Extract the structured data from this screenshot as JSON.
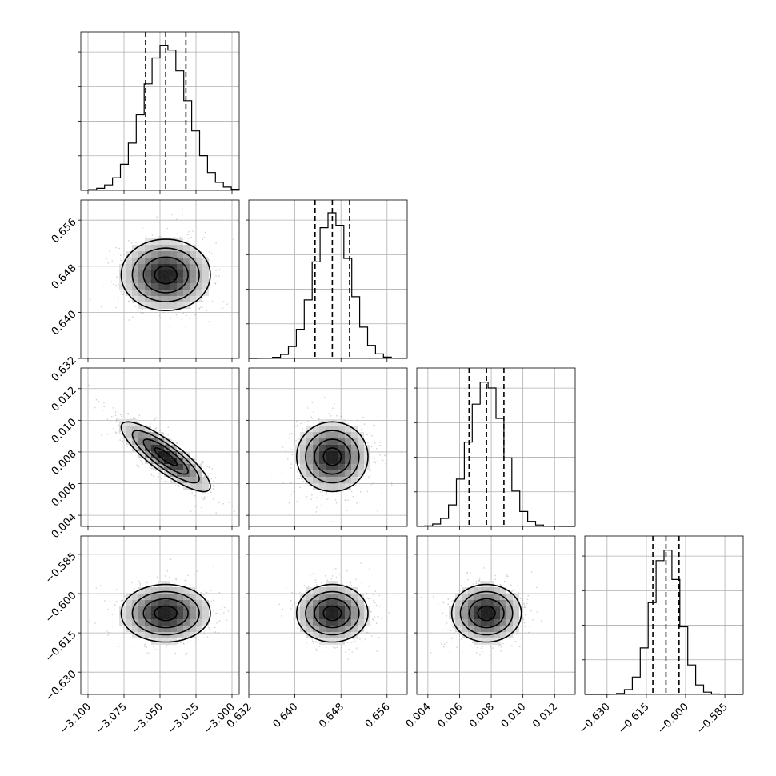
{
  "chart_data": {
    "type": "corner",
    "parameters": [
      {
        "mean": -3.046,
        "sd": 0.0155,
        "q": [
          -3.06,
          -3.046,
          -3.032
        ],
        "range": [
          -3.105,
          -2.995
        ],
        "ticks": [
          -3.1,
          -3.075,
          -3.05,
          -3.025,
          -3.0
        ],
        "tick_labels": [
          "−3.100",
          "−3.075",
          "−3.050",
          "−3.025",
          "−3.000"
        ]
      },
      {
        "mean": 0.6465,
        "sd": 0.0031,
        "q": [
          0.6435,
          0.6465,
          0.6495
        ],
        "range": [
          0.632,
          0.6595
        ],
        "ticks": [
          0.632,
          0.64,
          0.648,
          0.656
        ],
        "tick_labels": [
          "0.632",
          "0.640",
          "0.648",
          "0.656"
        ]
      },
      {
        "mean": 0.0077,
        "sd": 0.0011,
        "q": [
          0.0066,
          0.0077,
          0.0088
        ],
        "range": [
          0.0033,
          0.0133
        ],
        "ticks": [
          0.004,
          0.006,
          0.008,
          0.01,
          0.012
        ],
        "tick_labels": [
          "0.004",
          "0.006",
          "0.008",
          "0.010",
          "0.012"
        ]
      },
      {
        "mean": -0.6075,
        "sd": 0.0055,
        "q": [
          -0.6125,
          -0.6075,
          -0.6025
        ],
        "range": [
          -0.6385,
          -0.578
        ],
        "ticks": [
          -0.63,
          -0.615,
          -0.6,
          -0.585
        ],
        "tick_labels": [
          "−0.630",
          "−0.615",
          "−0.600",
          "−0.585"
        ]
      }
    ],
    "correlations": {
      "0-2": -0.85
    },
    "histogram_bins": 20,
    "quantiles": [
      0.16,
      0.5,
      0.84
    ],
    "grid": true
  }
}
